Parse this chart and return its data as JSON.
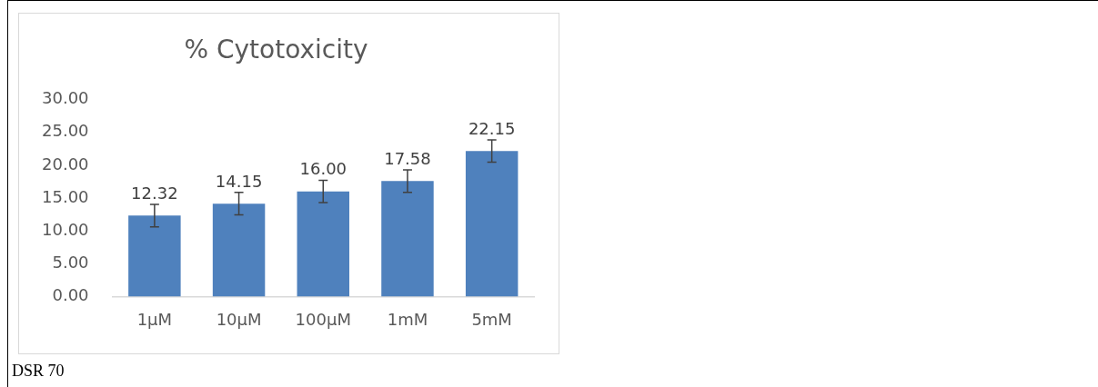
{
  "chart_data": {
    "type": "bar",
    "title": "% Cytotoxicity",
    "categories": [
      "1µM",
      "10µM",
      "100µM",
      "1mM",
      "5mM"
    ],
    "values": [
      12.32,
      14.15,
      16.0,
      17.58,
      22.15
    ],
    "errors": [
      1.7,
      1.7,
      1.7,
      1.7,
      1.7
    ],
    "color": "#4f81bd",
    "ylim": [
      0,
      30
    ],
    "yticks": [
      {
        "value": 0,
        "label": "0.00"
      },
      {
        "value": 5,
        "label": "5.00"
      },
      {
        "value": 10,
        "label": "10.00"
      },
      {
        "value": 15,
        "label": "15.00"
      },
      {
        "value": 20,
        "label": "20.00"
      },
      {
        "value": 25,
        "label": "25.00"
      },
      {
        "value": 30,
        "label": "30.00"
      }
    ],
    "value_labels": [
      "12.32",
      "14.15",
      "16.00",
      "17.58",
      "22.15"
    ],
    "grid": false,
    "legend": false,
    "annotations": [
      "DSR 70"
    ]
  }
}
